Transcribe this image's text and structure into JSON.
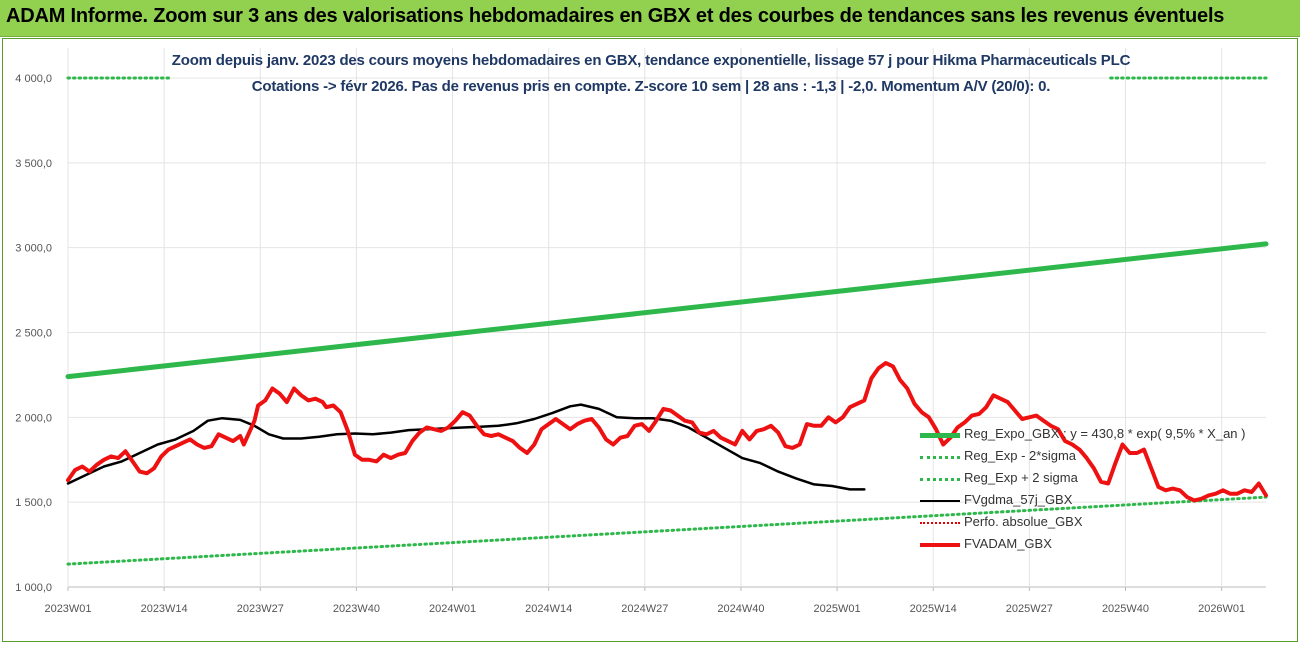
{
  "banner": {
    "title": "ADAM Informe. Zoom sur 3 ans des valorisations hebdomadaires en GBX et des courbes de tendances sans les revenus éventuels"
  },
  "chart_data": {
    "type": "line",
    "title": "Zoom depuis janv. 2023 des cours moyens hebdomadaires en GBX, tendance exponentielle, lissage 57 j pour Hikma Pharmaceuticals PLC",
    "subtitle": "Cotations -> févr 2026.  Pas de revenus pris en compte. Z-score 10 sem | 28 ans : -1,3 | -2,0. Momentum A/V (20/0): 0.",
    "ylim": [
      1000,
      4000
    ],
    "y_ticks": [
      "1 000,0",
      "1 500,0",
      "2 000,0",
      "2 500,0",
      "3 000,0",
      "3 500,0",
      "4 000,0"
    ],
    "y_tick_values": [
      1000,
      1500,
      2000,
      2500,
      3000,
      3500,
      4000
    ],
    "x_ticks": [
      "2023W01",
      "2023W14",
      "2023W27",
      "2023W40",
      "2024W01",
      "2024W14",
      "2024W27",
      "2024W40",
      "2025W01",
      "2025W14",
      "2025W27",
      "2025W40",
      "2026W01"
    ],
    "n_weeks": 163,
    "grid": true,
    "legend_position": "right",
    "series": [
      {
        "name": "Reg_Expo_GBX : y = 430,8 * exp( 9,5% *  X_an )",
        "color": "#2eb84b",
        "style": "solid",
        "width": 5,
        "values": [
          [
            0,
            2240
          ],
          [
            162,
            3022
          ]
        ]
      },
      {
        "name": "Reg_Exp - 2*sigma",
        "color": "#2eb84b",
        "style": "dotted",
        "width": 3,
        "values": [
          [
            0,
            1135
          ],
          [
            162,
            1530
          ]
        ]
      },
      {
        "name": "Reg_Exp + 2 sigma",
        "color": "#2eb84b",
        "style": "dotted",
        "width": 3,
        "values": [
          [
            0,
            4000
          ],
          [
            14,
            4000
          ]
        ],
        "values_b": [
          [
            141,
            4000
          ],
          [
            162,
            4000
          ]
        ]
      },
      {
        "name": "FVgdma_57j_GBX",
        "color": "#000000",
        "style": "solid",
        "width": 2.5,
        "values": [
          [
            0,
            1610
          ],
          [
            5,
            1660
          ],
          [
            10,
            1710
          ],
          [
            15,
            1740
          ],
          [
            20,
            1790
          ],
          [
            25,
            1840
          ],
          [
            30,
            1870
          ],
          [
            35,
            1920
          ],
          [
            39,
            1980
          ],
          [
            43,
            1995
          ],
          [
            48,
            1985
          ],
          [
            52,
            1950
          ],
          [
            56,
            1900
          ],
          [
            60,
            1875
          ],
          [
            65,
            1875
          ],
          [
            70,
            1885
          ],
          [
            75,
            1900
          ],
          [
            80,
            1905
          ],
          [
            85,
            1900
          ],
          [
            90,
            1910
          ],
          [
            95,
            1925
          ],
          [
            100,
            1930
          ],
          [
            105,
            1935
          ],
          [
            110,
            1940
          ],
          [
            115,
            1945
          ],
          [
            120,
            1950
          ],
          [
            125,
            1965
          ],
          [
            130,
            1990
          ],
          [
            135,
            2025
          ],
          [
            140,
            2065
          ],
          [
            143,
            2075
          ],
          [
            148,
            2050
          ],
          [
            153,
            2000
          ],
          [
            158,
            1995
          ],
          [
            163,
            1995
          ],
          [
            168,
            1980
          ],
          [
            173,
            1940
          ],
          [
            178,
            1880
          ],
          [
            183,
            1820
          ],
          [
            188,
            1760
          ],
          [
            193,
            1730
          ],
          [
            198,
            1680
          ],
          [
            203,
            1640
          ],
          [
            208,
            1605
          ],
          [
            213,
            1595
          ],
          [
            218,
            1575
          ],
          [
            222,
            1575
          ]
        ]
      },
      {
        "name": "Perfo. absolue_GBX",
        "color": "#e00000",
        "style": "dotted",
        "width": 2,
        "values": []
      },
      {
        "name": "FVADAM_GBX",
        "color": "#ee1111",
        "style": "solid",
        "width": 4,
        "values": [
          [
            0,
            1630
          ],
          [
            2,
            1690
          ],
          [
            4,
            1710
          ],
          [
            6,
            1680
          ],
          [
            8,
            1720
          ],
          [
            10,
            1750
          ],
          [
            12,
            1770
          ],
          [
            14,
            1760
          ],
          [
            16,
            1800
          ],
          [
            18,
            1740
          ],
          [
            20,
            1680
          ],
          [
            22,
            1670
          ],
          [
            24,
            1700
          ],
          [
            26,
            1770
          ],
          [
            28,
            1810
          ],
          [
            30,
            1830
          ],
          [
            32,
            1850
          ],
          [
            34,
            1870
          ],
          [
            36,
            1840
          ],
          [
            38,
            1820
          ],
          [
            40,
            1830
          ],
          [
            42,
            1900
          ],
          [
            44,
            1880
          ],
          [
            46,
            1860
          ],
          [
            48,
            1890
          ],
          [
            49,
            1840
          ],
          [
            52,
            1980
          ],
          [
            53,
            2070
          ],
          [
            55,
            2100
          ],
          [
            57,
            2170
          ],
          [
            59,
            2140
          ],
          [
            61,
            2090
          ],
          [
            63,
            2170
          ],
          [
            65,
            2130
          ],
          [
            67,
            2100
          ],
          [
            69,
            2110
          ],
          [
            71,
            2090
          ],
          [
            72,
            2060
          ],
          [
            74,
            2070
          ],
          [
            76,
            2030
          ],
          [
            78,
            1920
          ],
          [
            80,
            1780
          ],
          [
            82,
            1750
          ],
          [
            84,
            1750
          ],
          [
            86,
            1740
          ],
          [
            88,
            1780
          ],
          [
            90,
            1760
          ],
          [
            92,
            1780
          ],
          [
            94,
            1790
          ],
          [
            96,
            1860
          ],
          [
            98,
            1910
          ],
          [
            100,
            1940
          ],
          [
            102,
            1930
          ],
          [
            104,
            1920
          ],
          [
            106,
            1940
          ],
          [
            108,
            1980
          ],
          [
            110,
            2030
          ],
          [
            112,
            2010
          ],
          [
            114,
            1950
          ],
          [
            116,
            1900
          ],
          [
            118,
            1890
          ],
          [
            120,
            1900
          ],
          [
            122,
            1880
          ],
          [
            124,
            1860
          ],
          [
            126,
            1820
          ],
          [
            128,
            1790
          ],
          [
            130,
            1840
          ],
          [
            132,
            1930
          ],
          [
            134,
            1960
          ],
          [
            136,
            1990
          ],
          [
            138,
            1960
          ],
          [
            140,
            1930
          ],
          [
            142,
            1960
          ],
          [
            144,
            1980
          ],
          [
            146,
            1990
          ],
          [
            148,
            1940
          ],
          [
            150,
            1870
          ],
          [
            152,
            1840
          ],
          [
            154,
            1880
          ],
          [
            156,
            1890
          ],
          [
            158,
            1950
          ],
          [
            160,
            1960
          ],
          [
            162,
            1920
          ],
          [
            164,
            1980
          ],
          [
            166,
            2050
          ],
          [
            168,
            2040
          ],
          [
            170,
            2010
          ],
          [
            172,
            1980
          ],
          [
            174,
            1970
          ],
          [
            176,
            1910
          ],
          [
            178,
            1900
          ],
          [
            180,
            1920
          ],
          [
            182,
            1880
          ],
          [
            184,
            1860
          ],
          [
            186,
            1840
          ],
          [
            188,
            1920
          ],
          [
            190,
            1870
          ],
          [
            192,
            1920
          ],
          [
            194,
            1930
          ],
          [
            196,
            1950
          ],
          [
            198,
            1910
          ],
          [
            200,
            1830
          ],
          [
            202,
            1820
          ],
          [
            204,
            1840
          ],
          [
            206,
            1960
          ],
          [
            208,
            1950
          ],
          [
            210,
            1950
          ],
          [
            212,
            2000
          ],
          [
            214,
            1970
          ],
          [
            216,
            2000
          ],
          [
            218,
            2060
          ],
          [
            220,
            2080
          ],
          [
            222,
            2100
          ],
          [
            224,
            2230
          ],
          [
            226,
            2290
          ],
          [
            228,
            2320
          ],
          [
            230,
            2300
          ],
          [
            232,
            2220
          ],
          [
            234,
            2170
          ],
          [
            236,
            2080
          ],
          [
            238,
            2030
          ],
          [
            240,
            2000
          ],
          [
            242,
            1930
          ],
          [
            244,
            1840
          ],
          [
            246,
            1880
          ],
          [
            248,
            1940
          ],
          [
            250,
            1970
          ],
          [
            252,
            2010
          ],
          [
            254,
            2020
          ],
          [
            256,
            2060
          ],
          [
            258,
            2130
          ],
          [
            260,
            2110
          ],
          [
            262,
            2090
          ],
          [
            264,
            2040
          ],
          [
            266,
            1990
          ],
          [
            268,
            2000
          ],
          [
            270,
            2010
          ],
          [
            272,
            1980
          ],
          [
            274,
            1950
          ],
          [
            276,
            1930
          ],
          [
            278,
            1860
          ],
          [
            280,
            1840
          ],
          [
            282,
            1810
          ],
          [
            284,
            1760
          ],
          [
            286,
            1700
          ],
          [
            288,
            1620
          ],
          [
            290,
            1610
          ],
          [
            292,
            1730
          ],
          [
            294,
            1840
          ],
          [
            296,
            1790
          ],
          [
            298,
            1790
          ],
          [
            300,
            1810
          ],
          [
            302,
            1700
          ],
          [
            304,
            1590
          ],
          [
            306,
            1570
          ],
          [
            308,
            1580
          ],
          [
            310,
            1570
          ],
          [
            312,
            1530
          ],
          [
            314,
            1510
          ],
          [
            316,
            1520
          ],
          [
            318,
            1540
          ],
          [
            320,
            1550
          ],
          [
            322,
            1570
          ],
          [
            324,
            1550
          ],
          [
            326,
            1550
          ],
          [
            328,
            1570
          ],
          [
            330,
            1560
          ],
          [
            332,
            1610
          ],
          [
            334,
            1540
          ]
        ]
      }
    ]
  }
}
